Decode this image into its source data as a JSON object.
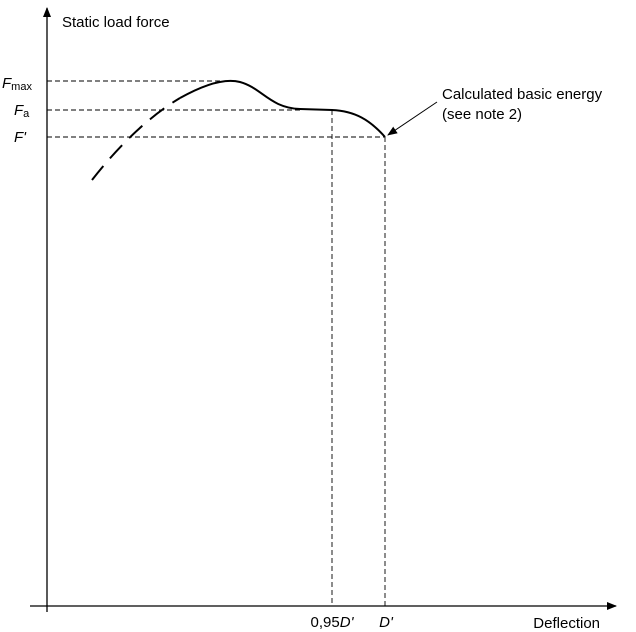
{
  "axes": {
    "y_label": "Static load force",
    "x_label": "Deflection"
  },
  "y_marks": [
    {
      "symbol": "F",
      "subscript": "max"
    },
    {
      "symbol": "F",
      "subscript": "a"
    },
    {
      "symbol": "F'"
    }
  ],
  "x_marks": [
    {
      "prefix": "0,95",
      "symbol": "D'"
    },
    {
      "symbol": "D'"
    }
  ],
  "annotation": {
    "line1": "Calculated basic energy",
    "line2": "(see note 2)"
  }
}
